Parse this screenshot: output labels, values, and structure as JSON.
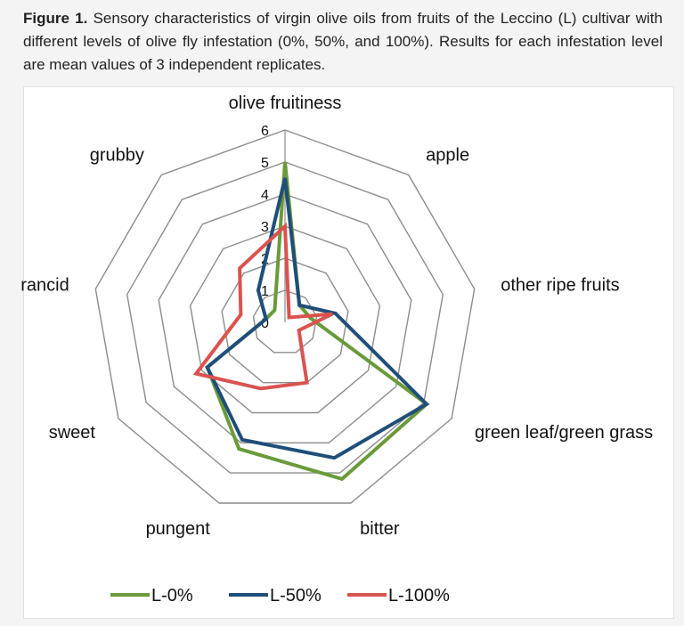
{
  "caption": {
    "label": "Figure 1.",
    "text": "Sensory characteristics of virgin olive oils from fruits of the Leccino (L) cultivar with different levels of olive fly infestation (0%, 50%, and 100%). Results for each infestation level are mean values of 3 independent replicates."
  },
  "chart_data": {
    "type": "radar",
    "axes": [
      "olive fruitiness",
      "apple",
      "other ripe fruits",
      "green leaf/green grass",
      "bitter",
      "pungent",
      "sweet",
      "rancid",
      "grubby"
    ],
    "rlim": [
      0,
      6
    ],
    "ticks": [
      0,
      1,
      2,
      3,
      4,
      5,
      6
    ],
    "grid": true,
    "legend": "bottom",
    "series": [
      {
        "name": "L-0%",
        "color": "#6a9a3a",
        "values": [
          5.0,
          0.7,
          0.8,
          5.1,
          5.2,
          4.2,
          2.8,
          0.6,
          0.5
        ]
      },
      {
        "name": "L-50%",
        "color": "#1f4e79",
        "values": [
          4.5,
          0.7,
          1.6,
          5.1,
          4.5,
          3.9,
          2.8,
          0.6,
          1.3
        ]
      },
      {
        "name": "L-100%",
        "color": "#d9534f",
        "values": [
          3.0,
          0.2,
          1.5,
          0.5,
          2.0,
          2.2,
          3.2,
          1.4,
          2.2
        ]
      }
    ]
  }
}
